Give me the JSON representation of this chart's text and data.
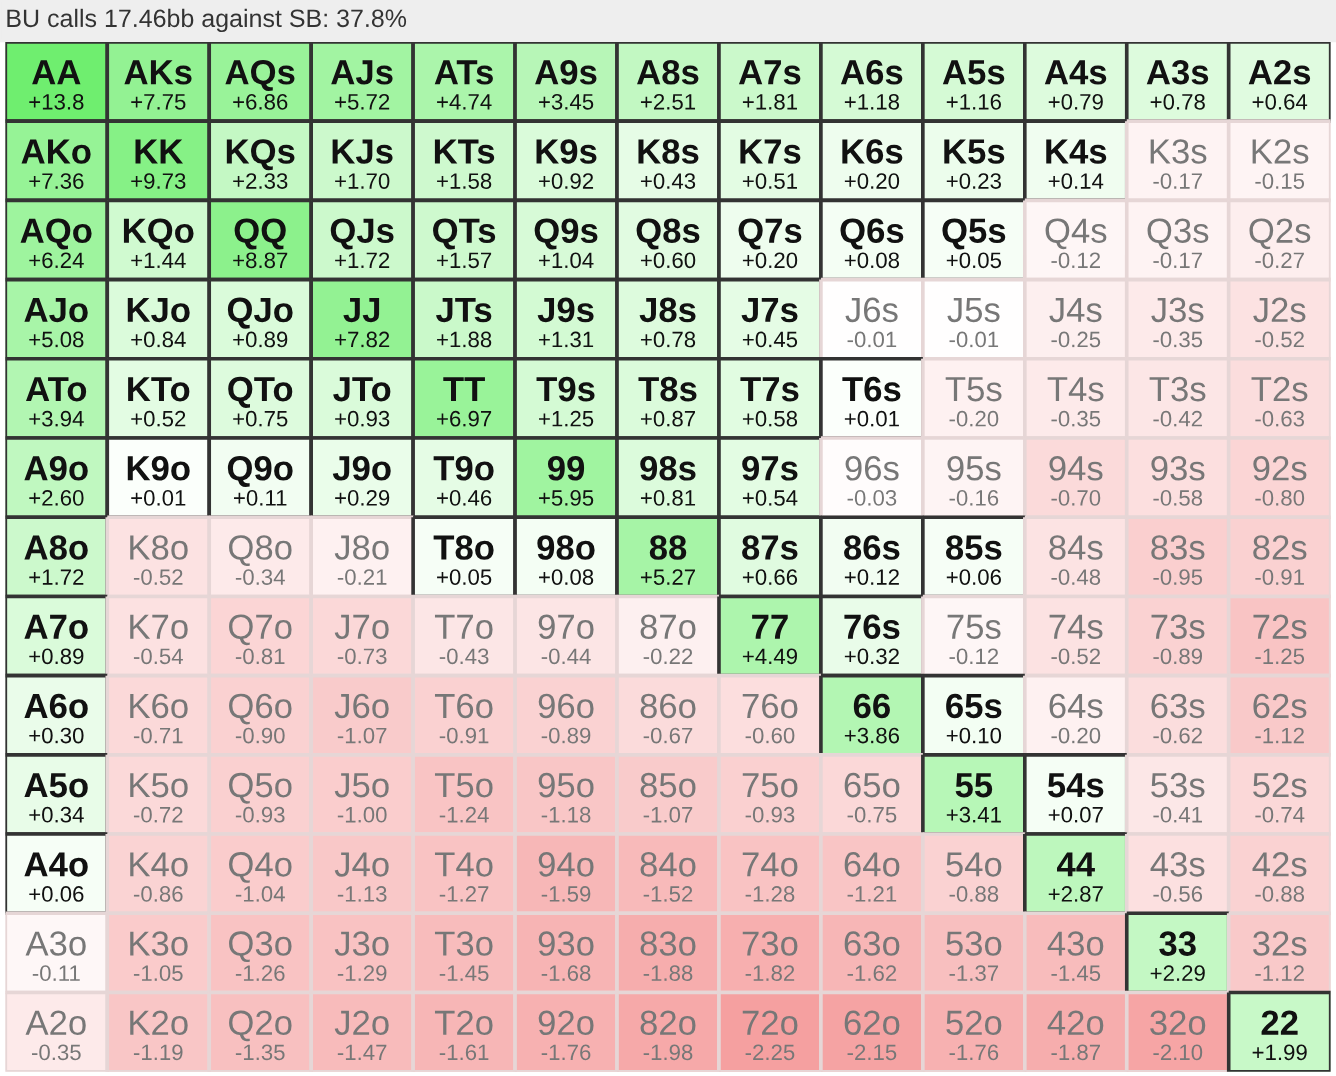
{
  "chart_data": {
    "type": "heatmap",
    "title": "BU calls 17.46bb against SB: 37.8%",
    "categories": [
      null,
      null,
      null,
      null,
      null,
      null,
      null,
      null,
      null,
      null,
      null,
      null,
      null
    ],
    "y_categories": [
      null,
      null,
      null,
      null,
      null,
      null,
      null,
      null,
      null,
      null,
      null,
      null,
      null
    ],
    "cells": [
      [
        13.8,
        7.75,
        6.86,
        5.72,
        4.74,
        3.45,
        2.51,
        1.81,
        1.18,
        1.16,
        0.79,
        0.78,
        0.64
      ],
      [
        7.36,
        9.73,
        2.33,
        1.7,
        1.58,
        0.92,
        0.43,
        0.51,
        0.2,
        0.23,
        0.14,
        -0.17,
        -0.15
      ],
      [
        6.24,
        1.44,
        8.87,
        1.72,
        1.57,
        1.04,
        0.6,
        0.2,
        0.08,
        0.05,
        -0.12,
        -0.17,
        -0.27
      ],
      [
        5.08,
        0.84,
        0.89,
        7.82,
        1.88,
        1.31,
        0.78,
        0.45,
        -0.01,
        -0.01,
        -0.25,
        -0.35,
        -0.52
      ],
      [
        3.94,
        0.52,
        0.75,
        0.93,
        6.97,
        1.25,
        0.87,
        0.58,
        0.01,
        -0.2,
        -0.35,
        -0.42,
        -0.63
      ],
      [
        2.6,
        0.01,
        0.11,
        0.29,
        0.46,
        5.95,
        0.81,
        0.54,
        -0.03,
        -0.16,
        -0.7,
        -0.58,
        -0.8
      ],
      [
        1.72,
        -0.52,
        -0.34,
        -0.21,
        0.05,
        0.08,
        5.27,
        0.66,
        0.12,
        0.06,
        -0.48,
        -0.95,
        -0.91
      ],
      [
        0.89,
        -0.54,
        -0.81,
        -0.73,
        -0.43,
        -0.44,
        -0.22,
        4.49,
        0.32,
        -0.12,
        -0.52,
        -0.89,
        -1.25
      ],
      [
        0.3,
        -0.71,
        -0.9,
        -1.07,
        -0.91,
        -0.89,
        -0.67,
        -0.6,
        3.86,
        0.1,
        -0.2,
        -0.62,
        -1.12
      ],
      [
        0.34,
        -0.72,
        -0.93,
        -1.0,
        -1.24,
        -1.18,
        -1.07,
        -0.93,
        -0.75,
        3.41,
        0.07,
        -0.41,
        -0.74
      ],
      [
        0.06,
        -0.86,
        -1.04,
        -1.13,
        -1.27,
        -1.59,
        -1.52,
        -1.28,
        -1.21,
        -0.88,
        2.87,
        -0.56,
        -0.88
      ],
      [
        -0.11,
        -1.05,
        -1.26,
        -1.29,
        -1.45,
        -1.68,
        -1.88,
        -1.82,
        -1.62,
        -1.37,
        -1.45,
        2.29,
        -1.12
      ],
      [
        -0.35,
        -1.19,
        -1.35,
        -1.47,
        -1.61,
        -1.76,
        -1.98,
        -2.25,
        -2.15,
        -1.76,
        -1.87,
        -2.1,
        1.99
      ]
    ],
    "cell_labels": [
      [
        "+13.8",
        "+7.75",
        "+6.86",
        "+5.72",
        "+4.74",
        "+3.45",
        "+2.51",
        "+1.81",
        "+1.18",
        "+1.16",
        "+0.79",
        "+0.78",
        "+0.64"
      ],
      [
        "+7.36",
        "+9.73",
        "+2.33",
        "+1.70",
        "+1.58",
        "+0.92",
        "+0.43",
        "+0.51",
        "+0.20",
        "+0.23",
        "+0.14",
        "-0.17",
        "-0.15"
      ],
      [
        "+6.24",
        "+1.44",
        "+8.87",
        "+1.72",
        "+1.57",
        "+1.04",
        "+0.60",
        "+0.20",
        "+0.08",
        "+0.05",
        "-0.12",
        "-0.17",
        "-0.27"
      ],
      [
        "+5.08",
        "+0.84",
        "+0.89",
        "+7.82",
        "+1.88",
        "+1.31",
        "+0.78",
        "+0.45",
        "-0.01",
        "-0.01",
        "-0.25",
        "-0.35",
        "-0.52"
      ],
      [
        "+3.94",
        "+0.52",
        "+0.75",
        "+0.93",
        "+6.97",
        "+1.25",
        "+0.87",
        "+0.58",
        "+0.01",
        "-0.20",
        "-0.35",
        "-0.42",
        "-0.63"
      ],
      [
        "+2.60",
        "+0.01",
        "+0.11",
        "+0.29",
        "+0.46",
        "+5.95",
        "+0.81",
        "+0.54",
        "-0.03",
        "-0.16",
        "-0.70",
        "-0.58",
        "-0.80"
      ],
      [
        "+1.72",
        "-0.52",
        "-0.34",
        "-0.21",
        "+0.05",
        "+0.08",
        "+5.27",
        "+0.66",
        "+0.12",
        "+0.06",
        "-0.48",
        "-0.95",
        "-0.91"
      ],
      [
        "+0.89",
        "-0.54",
        "-0.81",
        "-0.73",
        "-0.43",
        "-0.44",
        "-0.22",
        "+4.49",
        "+0.32",
        "-0.12",
        "-0.52",
        "-0.89",
        "-1.25"
      ],
      [
        "+0.30",
        "-0.71",
        "-0.90",
        "-1.07",
        "-0.91",
        "-0.89",
        "-0.67",
        "-0.60",
        "+3.86",
        "+0.10",
        "-0.20",
        "-0.62",
        "-1.12"
      ],
      [
        "+0.34",
        "-0.72",
        "-0.93",
        "-1.00",
        "-1.24",
        "-1.18",
        "-1.07",
        "-0.93",
        "-0.75",
        "+3.41",
        "+0.07",
        "-0.41",
        "-0.74"
      ],
      [
        "+0.06",
        "-0.86",
        "-1.04",
        "-1.13",
        "-1.27",
        "-1.59",
        "-1.52",
        "-1.28",
        "-1.21",
        "-0.88",
        "+2.87",
        "-0.56",
        "-0.88"
      ],
      [
        "-0.11",
        "-1.05",
        "-1.26",
        "-1.29",
        "-1.45",
        "-1.68",
        "-1.88",
        "-1.82",
        "-1.62",
        "-1.37",
        "-1.45",
        "+2.29",
        "-1.12"
      ],
      [
        "-0.35",
        "-1.19",
        "-1.35",
        "-1.47",
        "-1.61",
        "-1.76",
        "-1.98",
        "-2.25",
        "-2.15",
        "-1.76",
        "-1.87",
        "-2.10",
        "+1.99"
      ]
    ],
    "annotations": [
      "AA",
      "AKs",
      "AQs",
      "AJs",
      "ATs",
      "A9s",
      "A8s",
      "A7s",
      "A6s",
      "A5s",
      "A4s",
      "A3s",
      "A2s",
      "AKo",
      "KK",
      "KQs",
      "KJs",
      "KTs",
      "K9s",
      "K8s",
      "K7s",
      "K6s",
      "K5s",
      "K4s",
      "K3s",
      "K2s",
      "AQo",
      "KQo",
      "QQ",
      "QJs",
      "QTs",
      "Q9s",
      "Q8s",
      "Q7s",
      "Q6s",
      "Q5s",
      "Q4s",
      "Q3s",
      "Q2s",
      "AJo",
      "KJo",
      "QJo",
      "JJ",
      "JTs",
      "J9s",
      "J8s",
      "J7s",
      "J6s",
      "J5s",
      "J4s",
      "J3s",
      "J2s",
      "ATo",
      "KTo",
      "QTo",
      "JTo",
      "TT",
      "T9s",
      "T8s",
      "T7s",
      "T6s",
      "T5s",
      "T4s",
      "T3s",
      "T2s",
      "A9o",
      "K9o",
      "Q9o",
      "J9o",
      "T9o",
      "99",
      "98s",
      "97s",
      "96s",
      "95s",
      "94s",
      "93s",
      "92s",
      "A8o",
      "K8o",
      "Q8o",
      "J8o",
      "T8o",
      "98o",
      "88",
      "87s",
      "86s",
      "85s",
      "84s",
      "83s",
      "82s",
      "A7o",
      "K7o",
      "Q7o",
      "J7o",
      "T7o",
      "97o",
      "87o",
      "77",
      "76s",
      "75s",
      "74s",
      "73s",
      "72s",
      "A6o",
      "K6o",
      "Q6o",
      "J6o",
      "T6o",
      "96o",
      "86o",
      "76o",
      "66",
      "65s",
      "64s",
      "63s",
      "62s",
      "A5o",
      "K5o",
      "Q5o",
      "J5o",
      "T5o",
      "95o",
      "85o",
      "75o",
      "65o",
      "55",
      "54s",
      "53s",
      "52s",
      "A4o",
      "K4o",
      "Q4o",
      "J4o",
      "T4o",
      "94o",
      "84o",
      "74o",
      "64o",
      "54o",
      "44",
      "43s",
      "42s",
      "A3o",
      "K3o",
      "Q3o",
      "J3o",
      "T3o",
      "93o",
      "83o",
      "73o",
      "63o",
      "53o",
      "43o",
      "33",
      "32s",
      "A2o",
      "K2o",
      "Q2o",
      "J2o",
      "T2o",
      "92o",
      "82o",
      "72o",
      "62o",
      "52o",
      "42o",
      "32o",
      "22"
    ]
  }
}
